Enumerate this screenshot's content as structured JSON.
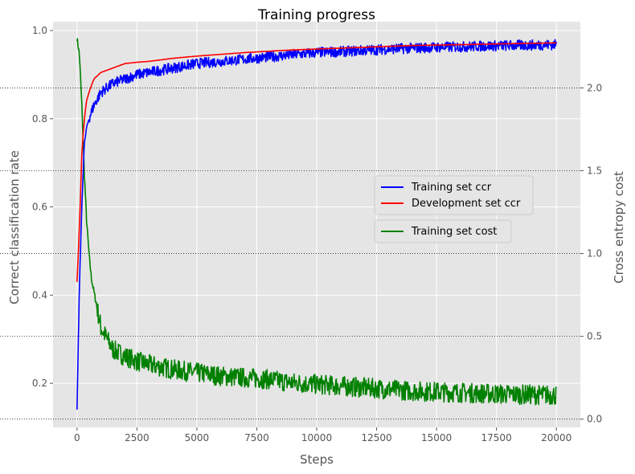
{
  "chart_data": {
    "type": "line",
    "title": "Training progress",
    "xlabel": "Steps",
    "ylabel_left": "Correct classification rate",
    "ylabel_right": "Cross entropy cost",
    "xlim": [
      -1000,
      21000
    ],
    "ylim_left": [
      0.1,
      1.02
    ],
    "ylim_right": [
      -0.05,
      2.4
    ],
    "x_ticks": [
      0,
      2500,
      5000,
      7500,
      10000,
      12500,
      15000,
      17500,
      20000
    ],
    "x_tick_labels": [
      "0",
      "2500",
      "5000",
      "7500",
      "10000",
      "12500",
      "15000",
      "17500",
      "20000"
    ],
    "y_left_ticks": [
      0.2,
      0.4,
      0.6,
      0.8,
      1.0
    ],
    "y_left_tick_labels": [
      "0.2",
      "0.4",
      "0.6",
      "0.8",
      "1.0"
    ],
    "y_right_ticks": [
      0.0,
      0.5,
      1.0,
      1.5,
      2.0
    ],
    "y_right_tick_labels": [
      "0.0",
      "0.5",
      "1.0",
      "1.5",
      "2.0"
    ],
    "grid": true,
    "right_axis_gridlines": "dotted",
    "legend_placement": "center-right",
    "colors": {
      "background": "#e5e5e5",
      "training_ccr": "#0000ff",
      "dev_ccr": "#ff0000",
      "training_cost": "#008000"
    },
    "series": [
      {
        "name": "Training set ccr",
        "axis": "left",
        "color": "#0000ff",
        "x": [
          0,
          100,
          200,
          300,
          400,
          500,
          700,
          1000,
          1500,
          2000,
          2500,
          3000,
          4000,
          5000,
          6000,
          7000,
          8000,
          9000,
          10000,
          11000,
          12000,
          13000,
          14000,
          15000,
          16000,
          17000,
          18000,
          19000,
          20000
        ],
        "y": [
          0.14,
          0.42,
          0.6,
          0.74,
          0.78,
          0.8,
          0.83,
          0.86,
          0.88,
          0.89,
          0.9,
          0.905,
          0.915,
          0.925,
          0.93,
          0.935,
          0.94,
          0.945,
          0.95,
          0.952,
          0.955,
          0.958,
          0.96,
          0.962,
          0.963,
          0.965,
          0.966,
          0.967,
          0.968
        ],
        "noise": 0.012
      },
      {
        "name": "Development set ccr",
        "axis": "left",
        "color": "#ff0000",
        "x": [
          0,
          100,
          200,
          300,
          400,
          500,
          700,
          1000,
          1500,
          2000,
          2500,
          3000,
          4000,
          5000,
          6000,
          7000,
          8000,
          9000,
          10000,
          11000,
          12000,
          13000,
          14000,
          15000,
          16000,
          17000,
          18000,
          19000,
          20000
        ],
        "y": [
          0.43,
          0.55,
          0.72,
          0.8,
          0.84,
          0.86,
          0.89,
          0.905,
          0.915,
          0.925,
          0.928,
          0.93,
          0.937,
          0.942,
          0.946,
          0.95,
          0.953,
          0.956,
          0.958,
          0.96,
          0.962,
          0.964,
          0.966,
          0.967,
          0.968,
          0.969,
          0.97,
          0.971,
          0.972
        ]
      },
      {
        "name": "Training set cost",
        "axis": "right",
        "color": "#008000",
        "x": [
          0,
          100,
          200,
          300,
          400,
          500,
          600,
          800,
          1000,
          1500,
          2000,
          2500,
          3000,
          4000,
          5000,
          6000,
          7000,
          8000,
          9000,
          10000,
          11000,
          12000,
          13000,
          14000,
          15000,
          16000,
          17000,
          18000,
          19000,
          20000
        ],
        "y": [
          2.3,
          2.2,
          1.9,
          1.5,
          1.2,
          1.0,
          0.85,
          0.7,
          0.55,
          0.42,
          0.38,
          0.35,
          0.33,
          0.3,
          0.28,
          0.26,
          0.25,
          0.24,
          0.22,
          0.21,
          0.2,
          0.19,
          0.18,
          0.17,
          0.165,
          0.16,
          0.155,
          0.15,
          0.148,
          0.145
        ],
        "noise": 0.06
      }
    ]
  }
}
